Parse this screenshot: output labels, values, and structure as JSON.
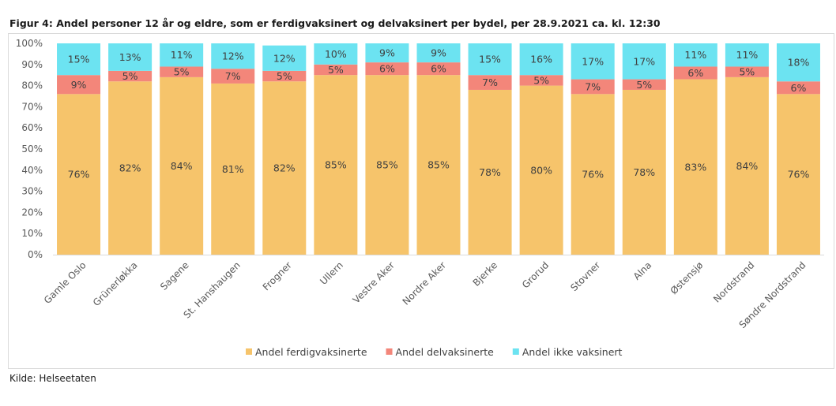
{
  "chart_data": {
    "type": "bar",
    "stacked": true,
    "title": "Figur 4: Andel personer 12 år og eldre, som er ferdigvaksinert og delvaksinert per bydel, per 28.9.2021 ca. kl. 12:30",
    "categories": [
      "Gamle Oslo",
      "Grünerløkka",
      "Sagene",
      "St. Hanshaugen",
      "Frogner",
      "Ullern",
      "Vestre Aker",
      "Nordre Aker",
      "Bjerke",
      "Grorud",
      "Stovner",
      "Alna",
      "Østensjø",
      "Nordstrand",
      "Søndre Nordstrand"
    ],
    "series": [
      {
        "name": "Andel ferdigvaksinerte",
        "color": "#f6c46b",
        "values": [
          76,
          82,
          84,
          81,
          82,
          85,
          85,
          85,
          78,
          80,
          76,
          78,
          83,
          84,
          76
        ]
      },
      {
        "name": "Andel delvaksinerte",
        "color": "#f3867a",
        "values": [
          9,
          5,
          5,
          7,
          5,
          5,
          6,
          6,
          7,
          5,
          7,
          5,
          6,
          5,
          6
        ]
      },
      {
        "name": "Andel ikke vaksinert",
        "color": "#6ce3f1",
        "values": [
          15,
          13,
          11,
          12,
          12,
          10,
          9,
          9,
          15,
          16,
          17,
          17,
          11,
          11,
          18
        ]
      }
    ],
    "ylim": [
      0,
      100
    ],
    "yticks": [
      "0%",
      "10%",
      "20%",
      "30%",
      "40%",
      "50%",
      "60%",
      "70%",
      "80%",
      "90%",
      "100%"
    ],
    "xlabel": "",
    "ylabel": "",
    "legend_position": "bottom",
    "grid": false
  },
  "source": "Kilde: Helseetaten"
}
